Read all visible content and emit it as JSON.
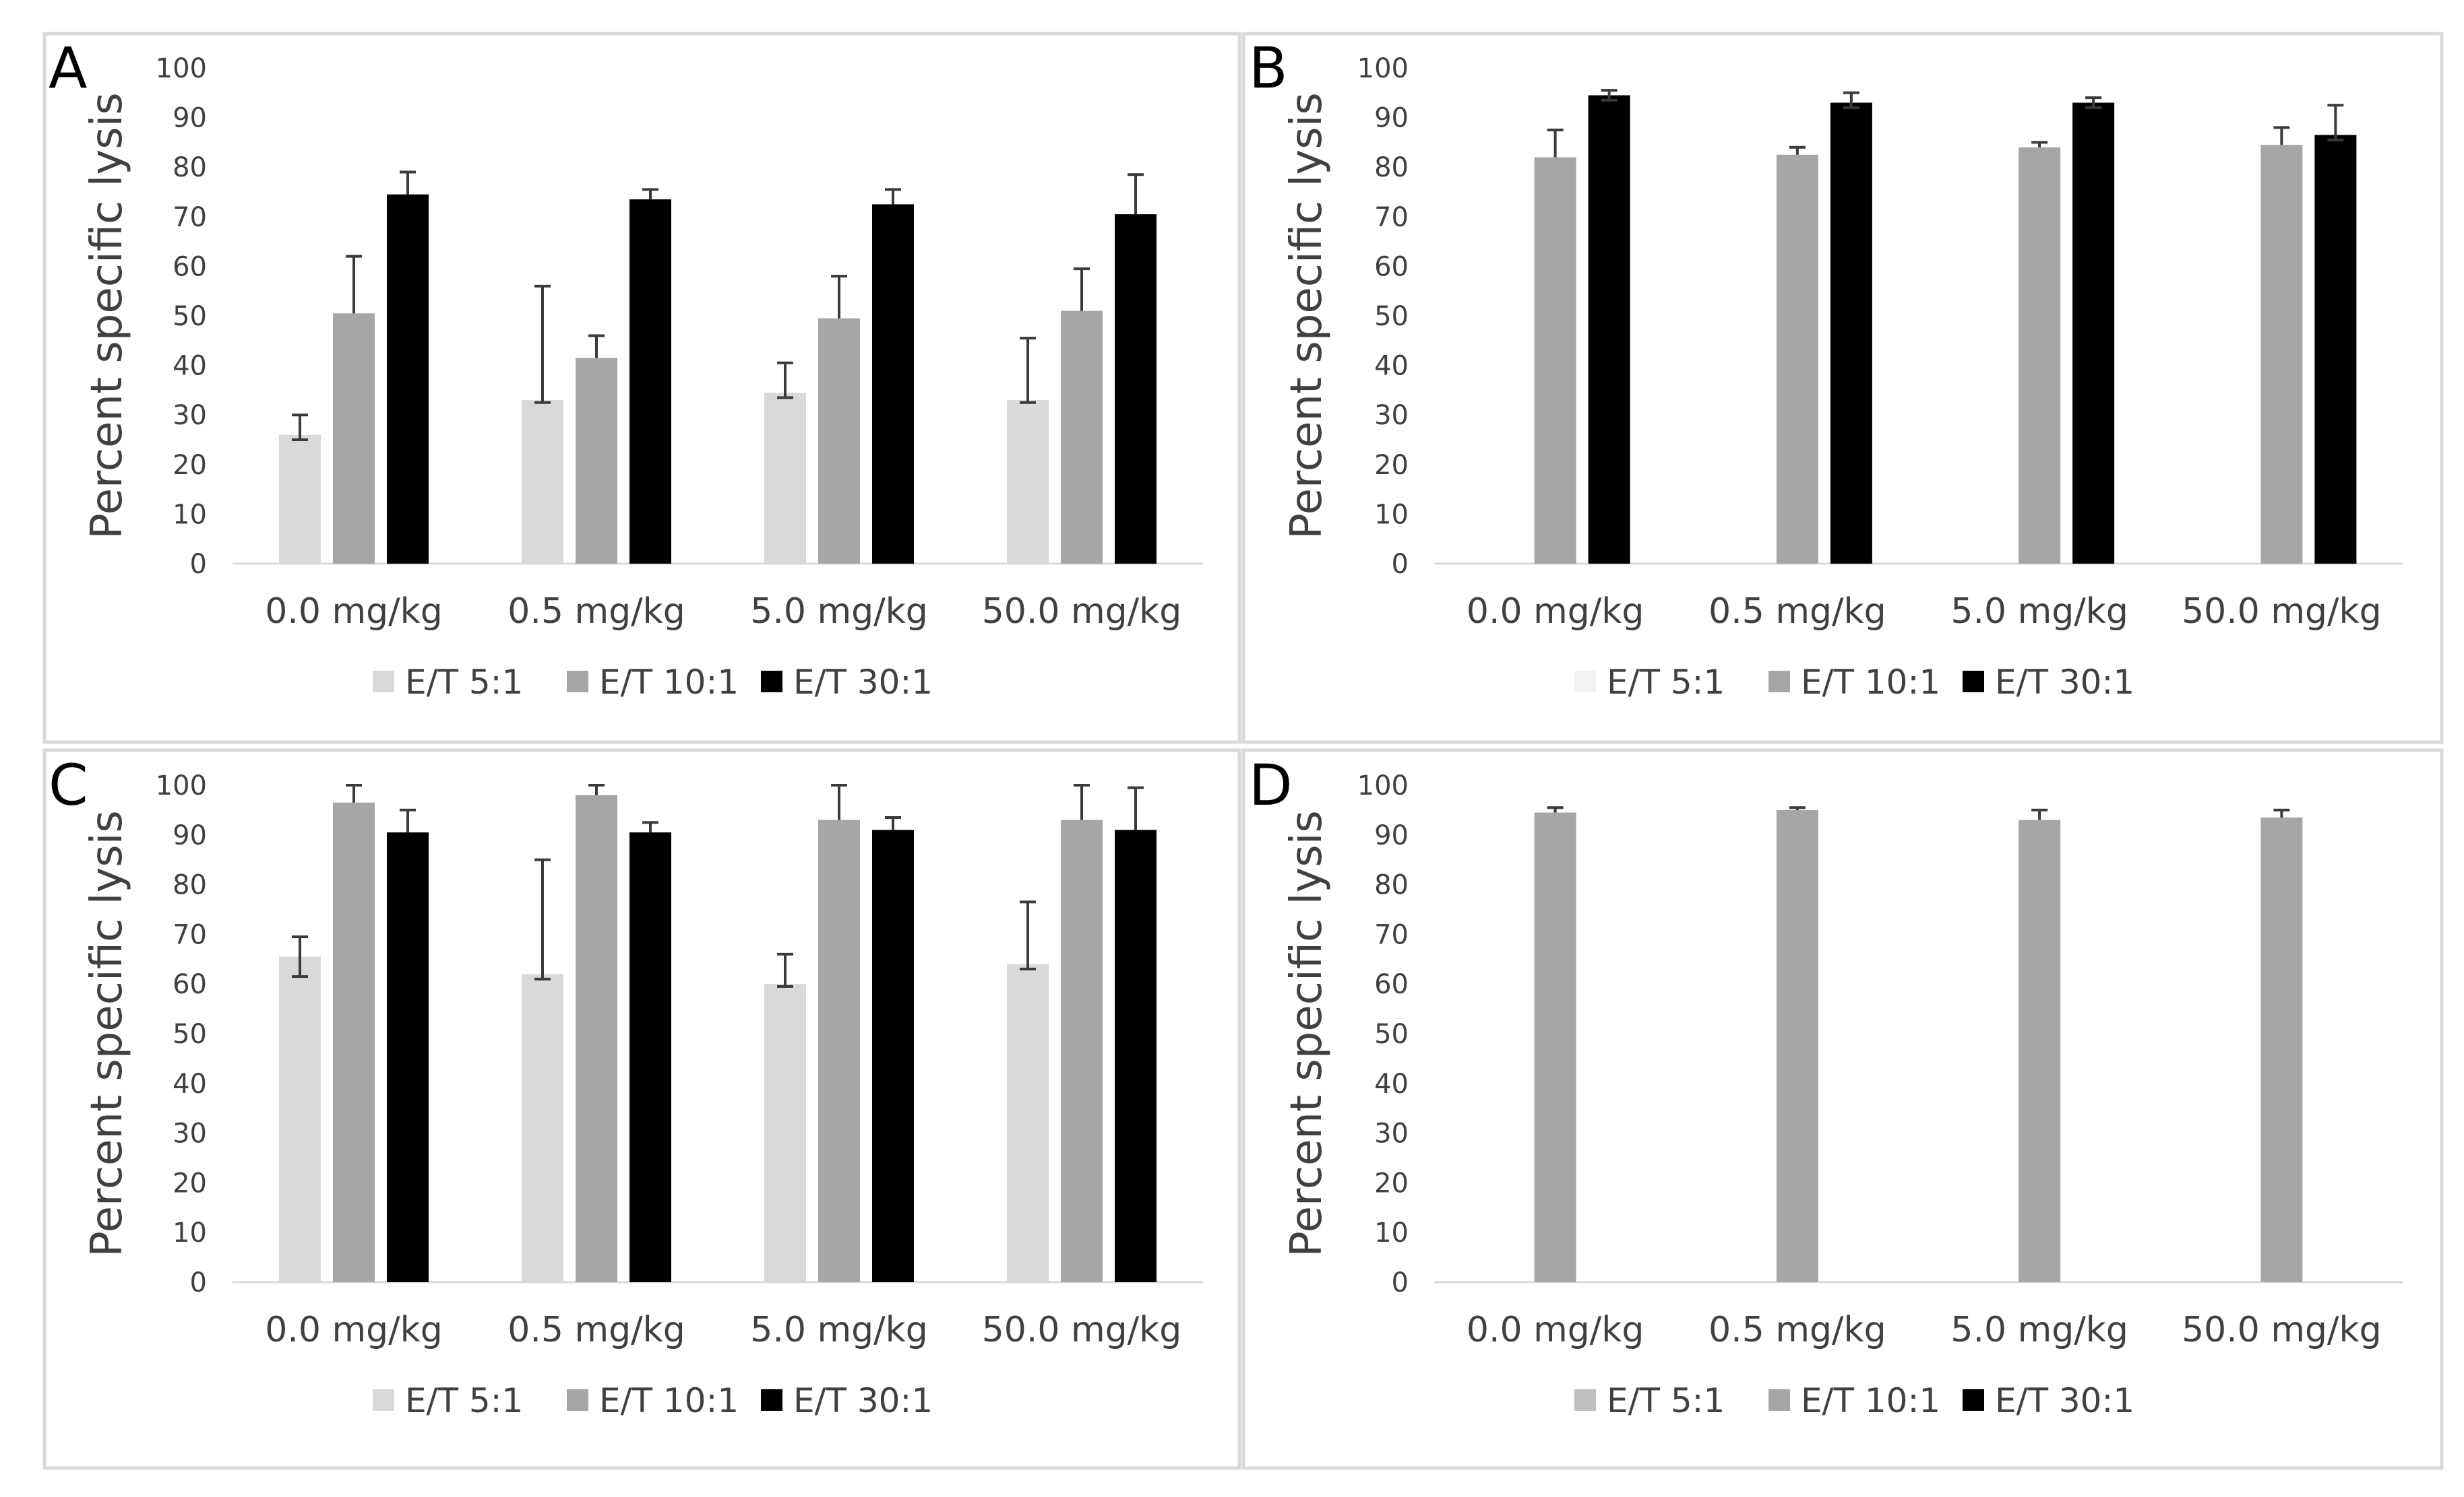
{
  "chart_data": [
    {
      "panel": "A",
      "type": "bar",
      "title": "",
      "xlabel": "",
      "ylabel": "Percent specific lysis",
      "ylim": [
        0,
        100
      ],
      "yticks": [
        "0",
        "10",
        "20",
        "30",
        "40",
        "50",
        "60",
        "70",
        "80",
        "90",
        "100"
      ],
      "categories": [
        "0.0 mg/kg",
        "0.5 mg/kg",
        "5.0 mg/kg",
        "50.0 mg/kg"
      ],
      "series": [
        {
          "name": "E/T 5:1",
          "color": "#d9d9d9",
          "values": [
            26,
            33,
            34.5,
            33
          ],
          "err_upper": [
            30,
            56,
            40.5,
            45.5
          ],
          "err_lower": [
            25,
            32.5,
            33.5,
            32.5
          ]
        },
        {
          "name": "E/T 10:1",
          "color": "#a6a6a6",
          "values": [
            50.5,
            41.5,
            49.5,
            51
          ],
          "err_upper": [
            62,
            46,
            58,
            59.5
          ],
          "err_lower": null
        },
        {
          "name": "E/T 30:1",
          "color": "#000000",
          "values": [
            74.5,
            73.5,
            72.5,
            70.5
          ],
          "err_upper": [
            79,
            75.5,
            75.5,
            78.5
          ],
          "err_lower": null
        }
      ],
      "legend_position": "bottom"
    },
    {
      "panel": "B",
      "type": "bar",
      "title": "",
      "xlabel": "",
      "ylabel": "Percent specific lysis",
      "ylim": [
        0,
        100
      ],
      "yticks": [
        "0",
        "10",
        "20",
        "30",
        "40",
        "50",
        "60",
        "70",
        "80",
        "90",
        "100"
      ],
      "categories": [
        "0.0 mg/kg",
        "0.5 mg/kg",
        "5.0 mg/kg",
        "50.0 mg/kg"
      ],
      "series": [
        {
          "name": "E/T 5:1",
          "color": "#f2f2f2",
          "values": [
            0,
            0,
            0,
            0
          ],
          "err_upper": null,
          "err_lower": null
        },
        {
          "name": "E/T 10:1",
          "color": "#a6a6a6",
          "values": [
            82,
            82.5,
            84,
            84.5
          ],
          "err_upper": [
            87.5,
            84,
            85,
            88
          ],
          "err_lower": null
        },
        {
          "name": "E/T 30:1",
          "color": "#000000",
          "values": [
            94.5,
            93,
            93,
            86.5
          ],
          "err_upper": [
            95.5,
            95,
            94,
            92.5
          ],
          "err_lower": [
            93.5,
            92,
            92,
            85.5
          ]
        }
      ],
      "legend_position": "bottom"
    },
    {
      "panel": "C",
      "type": "bar",
      "title": "",
      "xlabel": "",
      "ylabel": "Percent specific lysis",
      "ylim": [
        0,
        100
      ],
      "yticks": [
        "0",
        "10",
        "20",
        "30",
        "40",
        "50",
        "60",
        "70",
        "80",
        "90",
        "100"
      ],
      "categories": [
        "0.0 mg/kg",
        "0.5 mg/kg",
        "5.0 mg/kg",
        "50.0 mg/kg"
      ],
      "series": [
        {
          "name": "E/T 5:1",
          "color": "#d9d9d9",
          "values": [
            65.5,
            62,
            60,
            64
          ],
          "err_upper": [
            69.5,
            85,
            66,
            76.5
          ],
          "err_lower": [
            61.5,
            61,
            59.5,
            63
          ]
        },
        {
          "name": "E/T 10:1",
          "color": "#a6a6a6",
          "values": [
            96.5,
            98,
            93,
            93
          ],
          "err_upper": [
            100,
            100,
            100,
            100
          ],
          "err_lower": null
        },
        {
          "name": "E/T 30:1",
          "color": "#000000",
          "values": [
            90.5,
            90.5,
            91,
            91
          ],
          "err_upper": [
            95,
            92.5,
            93.5,
            99.5
          ],
          "err_lower": null
        }
      ],
      "legend_position": "bottom"
    },
    {
      "panel": "D",
      "type": "bar",
      "title": "",
      "xlabel": "",
      "ylabel": "Percent specific lysis",
      "ylim": [
        0,
        100
      ],
      "yticks": [
        "0",
        "10",
        "20",
        "30",
        "40",
        "50",
        "60",
        "70",
        "80",
        "90",
        "100"
      ],
      "categories": [
        "0.0 mg/kg",
        "0.5 mg/kg",
        "5.0 mg/kg",
        "50.0 mg/kg"
      ],
      "series": [
        {
          "name": "E/T 5:1",
          "color": "#bfbfbf",
          "values": [
            0,
            0,
            0,
            0
          ],
          "err_upper": null,
          "err_lower": null
        },
        {
          "name": "E/T 10:1",
          "color": "#a6a6a6",
          "values": [
            94.5,
            95,
            93,
            93.5
          ],
          "err_upper": [
            95.5,
            95.5,
            95,
            95
          ],
          "err_lower": null
        },
        {
          "name": "E/T 30:1",
          "color": "#000000",
          "values": [
            0,
            0,
            0,
            0
          ],
          "err_upper": null,
          "err_lower": null
        }
      ],
      "legend_position": "bottom"
    }
  ]
}
